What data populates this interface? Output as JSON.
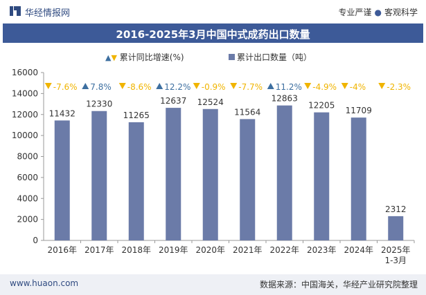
{
  "header": {
    "brand": "华经情报网",
    "tagline_left": "专业严谨",
    "tagline_sep": "●",
    "tagline_right": "客观科学"
  },
  "title": "2016-2025年3月中国中式成药出口数量",
  "legend": {
    "growth_label": "累计同比增速(%)",
    "quantity_label": "累计出口数量（吨）"
  },
  "footer": {
    "url": "www.huaon.com",
    "source": "数据来源：中国海关，华经产业研究院整理"
  },
  "colors": {
    "bar": "#6b7ba8",
    "title_band": "#3d5a98",
    "up": "#3d6fa0",
    "down": "#f0b400"
  },
  "chart_data": {
    "type": "bar",
    "title": "2016-2025年3月中国中式成药出口数量",
    "categories": [
      "2016年",
      "2017年",
      "2018年",
      "2019年",
      "2020年",
      "2021年",
      "2022年",
      "2023年",
      "2024年",
      "2025年\n1-3月"
    ],
    "series": [
      {
        "name": "累计出口数量（吨）",
        "values": [
          11432,
          12330,
          11265,
          12637,
          12524,
          11564,
          12863,
          12205,
          11709,
          2312
        ]
      },
      {
        "name": "累计同比增速(%)",
        "values": [
          -7.6,
          7.8,
          -8.6,
          12.2,
          -0.9,
          -7.7,
          11.2,
          -4.9,
          -4,
          -2.3
        ],
        "labels": [
          "-7.6%",
          "7.8%",
          "-8.6%",
          "12.2%",
          "-0.9%",
          "-7.7%",
          "11.2%",
          "-4.9%",
          "-4%",
          "-2.3%"
        ]
      }
    ],
    "ylim": [
      0,
      16000
    ],
    "yticks": [
      0,
      2000,
      4000,
      6000,
      8000,
      10000,
      12000,
      14000,
      16000
    ],
    "grid": false,
    "legend_position": "top"
  }
}
